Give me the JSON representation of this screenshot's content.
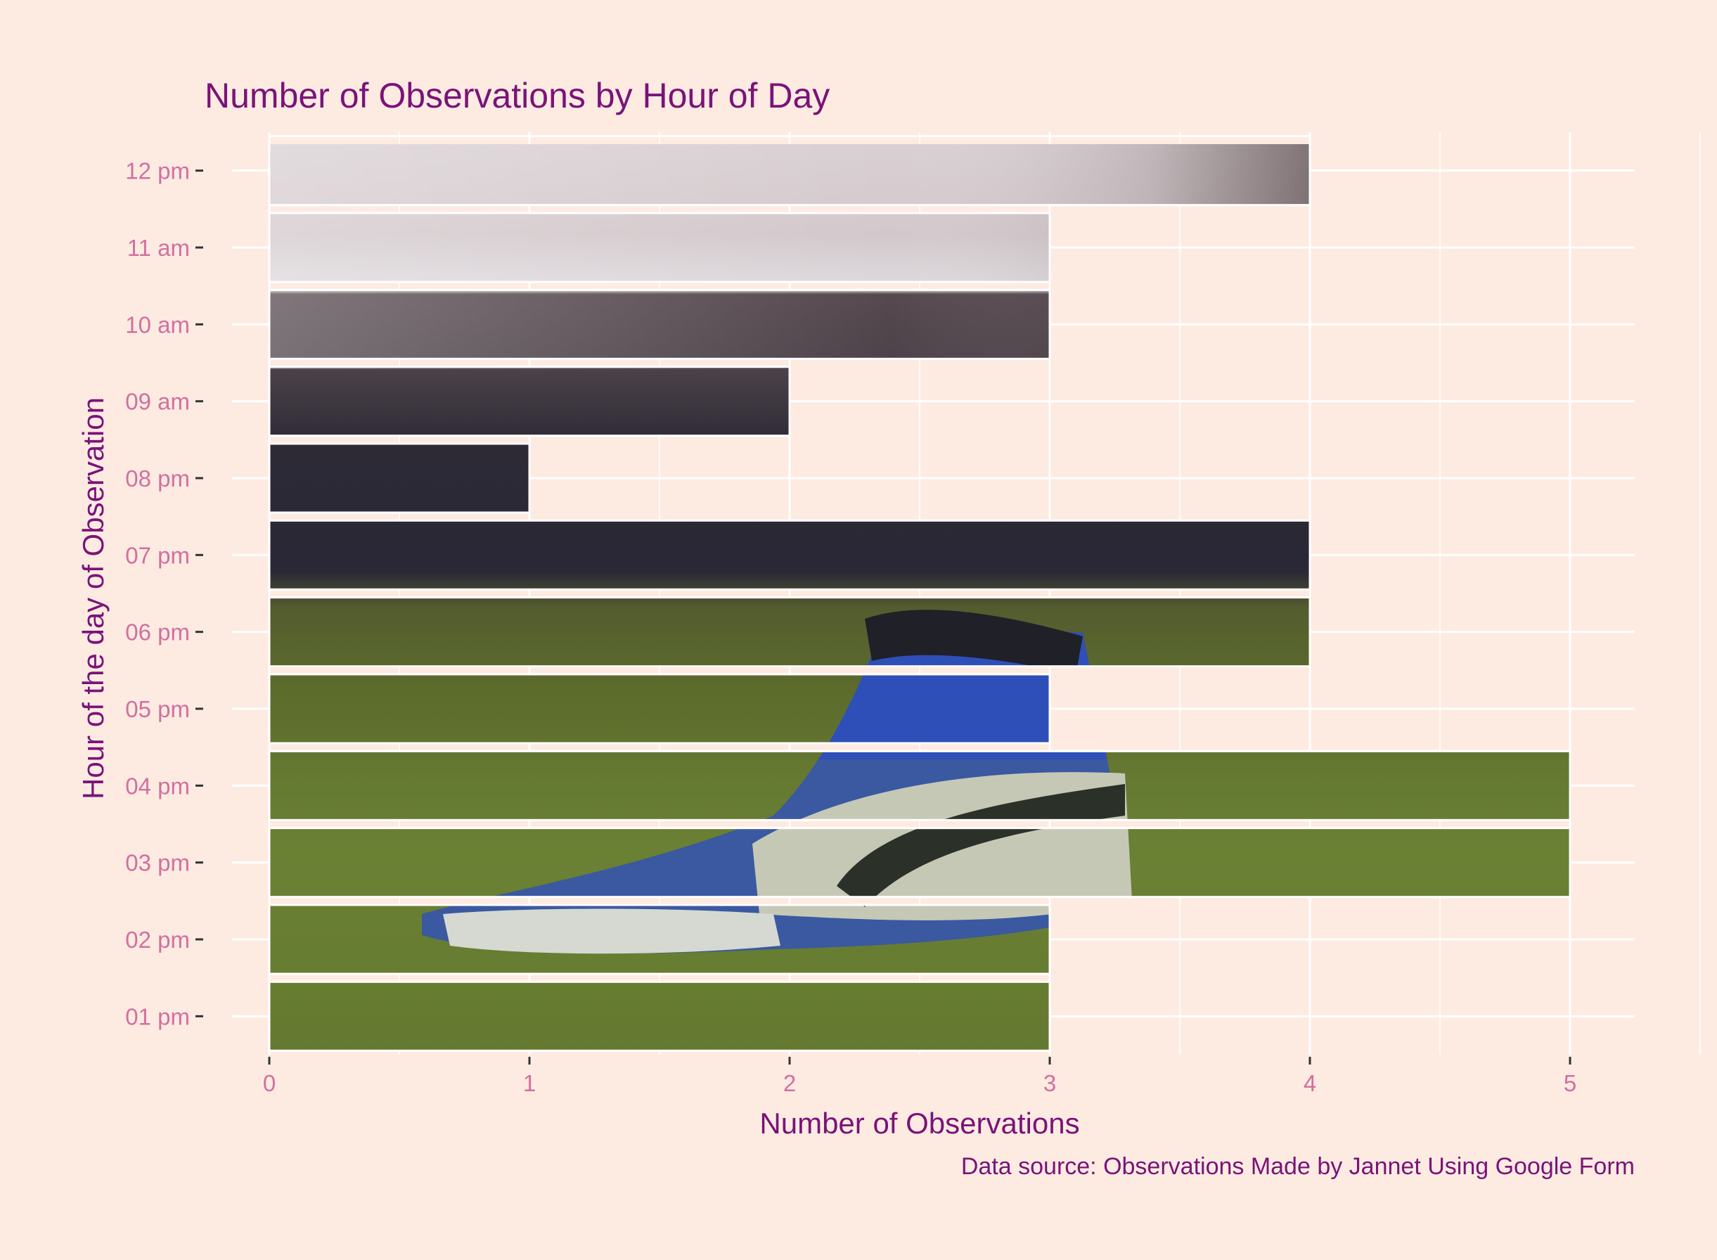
{
  "chart_data": {
    "type": "bar",
    "orientation": "horizontal",
    "title": "Number of Observations by Hour of Day",
    "xlabel": "Number of Observations",
    "ylabel": "Hour of the day of Observation",
    "caption": "Data source: Observations Made by Jannet Using Google Form",
    "categories": [
      "01 pm",
      "02 pm",
      "03 pm",
      "04 pm",
      "05 pm",
      "06 pm",
      "07 pm",
      "08 pm",
      "09 am",
      "10 am",
      "11 am",
      "12 pm"
    ],
    "values": [
      3,
      3,
      5,
      5,
      3,
      4,
      4,
      1,
      2,
      3,
      3,
      4
    ],
    "xlim": [
      0,
      5
    ],
    "xticks": [
      "0",
      "1",
      "2",
      "3",
      "4",
      "5"
    ],
    "grid": true,
    "legend": "none",
    "bar_fill": "photo-texture (sneaker on grass)"
  },
  "colors": {
    "background": "#fdebe2",
    "grid": "#ffffff",
    "title": "#7a1378",
    "axis_title": "#7a1378",
    "tick_label": "#d36f9f",
    "caption": "#7a1378"
  }
}
